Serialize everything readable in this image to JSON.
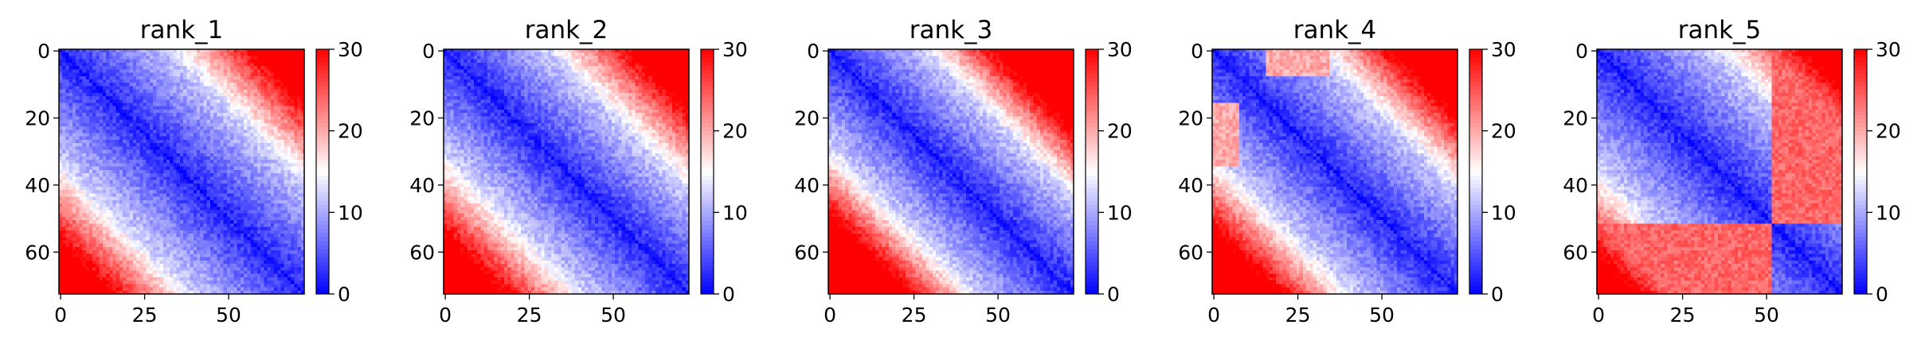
{
  "chart_data": [
    {
      "type": "heatmap",
      "title": "rank_1",
      "matrix_size": 73,
      "x_ticks": [
        0,
        25,
        50
      ],
      "y_ticks": [
        0,
        20,
        40,
        60
      ],
      "colorbar": {
        "ticks": [
          0,
          10,
          20,
          30
        ],
        "range": [
          0,
          30
        ],
        "colormap": "bwr"
      },
      "pattern": {
        "corner_value": 30,
        "band_width": 32,
        "ramp": 24,
        "shoulder": null,
        "split_at": null
      }
    },
    {
      "type": "heatmap",
      "title": "rank_2",
      "matrix_size": 73,
      "x_ticks": [
        0,
        25,
        50
      ],
      "y_ticks": [
        0,
        20,
        40,
        60
      ],
      "colorbar": {
        "ticks": [
          0,
          10,
          20,
          30
        ],
        "range": [
          0,
          30
        ],
        "colormap": "bwr"
      },
      "pattern": {
        "corner_value": 30,
        "band_width": 30,
        "ramp": 24,
        "shoulder": null,
        "split_at": null
      }
    },
    {
      "type": "heatmap",
      "title": "rank_3",
      "matrix_size": 73,
      "x_ticks": [
        0,
        25,
        50
      ],
      "y_ticks": [
        0,
        20,
        40,
        60
      ],
      "colorbar": {
        "ticks": [
          0,
          10,
          20,
          30
        ],
        "range": [
          0,
          30
        ],
        "colormap": "bwr"
      },
      "pattern": {
        "corner_value": 30,
        "band_width": 28,
        "ramp": 20,
        "shoulder": null,
        "split_at": null
      }
    },
    {
      "type": "heatmap",
      "title": "rank_4",
      "matrix_size": 73,
      "x_ticks": [
        0,
        25,
        50
      ],
      "y_ticks": [
        0,
        20,
        40,
        60
      ],
      "colorbar": {
        "ticks": [
          0,
          10,
          20,
          30
        ],
        "range": [
          0,
          30
        ],
        "colormap": "bwr"
      },
      "pattern": {
        "corner_value": 30,
        "band_width": 30,
        "ramp": 22,
        "shoulder": [
          15,
          35
        ],
        "split_at": null
      }
    },
    {
      "type": "heatmap",
      "title": "rank_5",
      "matrix_size": 73,
      "x_ticks": [
        0,
        25,
        50
      ],
      "y_ticks": [
        0,
        20,
        40,
        60
      ],
      "colorbar": {
        "ticks": [
          0,
          10,
          20,
          30
        ],
        "range": [
          0,
          30
        ],
        "colormap": "bwr"
      },
      "pattern": {
        "corner_value": 30,
        "band_width": 34,
        "ramp": 26,
        "shoulder": null,
        "split_at": 52
      }
    }
  ],
  "colors": {
    "low": "#0000ff",
    "mid": "#ffffff",
    "high": "#ff0000"
  }
}
